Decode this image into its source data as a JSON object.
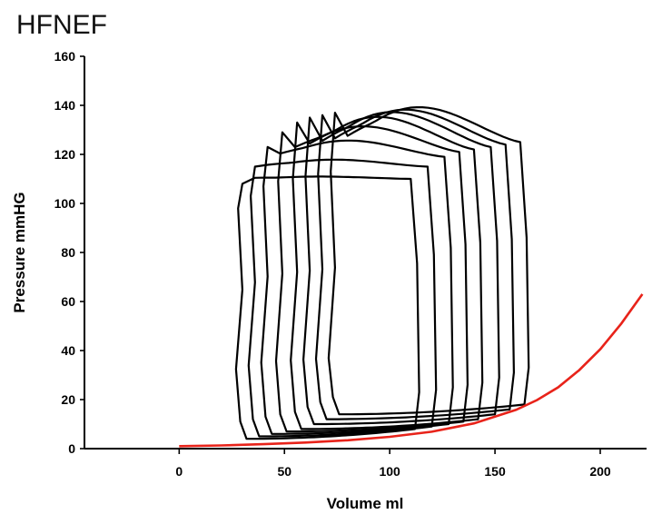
{
  "chart_data": {
    "type": "line",
    "title": "HFNEF",
    "xlabel": "Volume ml",
    "ylabel": "Pressure mmHG",
    "xlim": [
      -45,
      222
    ],
    "ylim": [
      0,
      160
    ],
    "x_ticks": [
      "0",
      "50",
      "100",
      "150",
      "200"
    ],
    "y_ticks": [
      "0",
      "20",
      "40",
      "60",
      "80",
      "100",
      "120",
      "140",
      "160"
    ],
    "grid": false,
    "legend": "none",
    "colors": {
      "loops": "#000000",
      "edpvr": "#e8231a"
    },
    "pv_loops": [
      {
        "ved": 112,
        "ves": 28,
        "pes": 108,
        "pmax": 111,
        "ped": 8
      },
      {
        "ved": 120,
        "ves": 34,
        "pes": 113,
        "pmax": 118,
        "ped": 9
      },
      {
        "ved": 128,
        "ves": 40,
        "pes": 117,
        "pmax": 126,
        "ped": 10
      },
      {
        "ved": 135,
        "ves": 47,
        "pes": 119,
        "pmax": 132,
        "ped": 11
      },
      {
        "ved": 142,
        "ves": 54,
        "pes": 120,
        "pmax": 136,
        "ped": 12
      },
      {
        "ved": 150,
        "ves": 60,
        "pes": 121,
        "pmax": 138,
        "ped": 14
      },
      {
        "ved": 157,
        "ves": 66,
        "pes": 122,
        "pmax": 139,
        "ped": 16
      },
      {
        "ved": 164,
        "ves": 72,
        "pes": 123,
        "pmax": 140,
        "ped": 18
      }
    ],
    "edpvr": {
      "x": [
        0,
        20,
        40,
        60,
        80,
        100,
        120,
        140,
        160,
        170,
        180,
        190,
        200,
        210,
        220
      ],
      "y": [
        1,
        1.3,
        1.8,
        2.5,
        3.4,
        4.8,
        6.9,
        10.3,
        15.8,
        19.8,
        25,
        32,
        40.5,
        51,
        63
      ]
    }
  }
}
